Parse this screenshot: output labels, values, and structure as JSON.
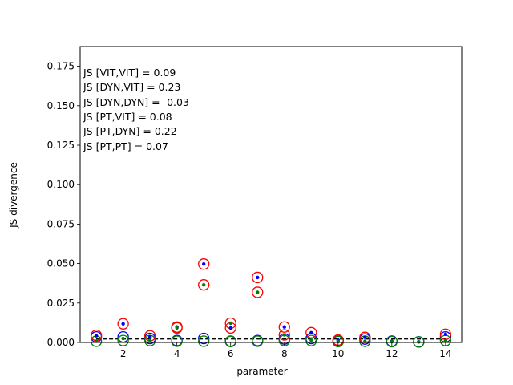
{
  "chart_data": {
    "type": "scatter",
    "xlabel": "parameter",
    "ylabel": "JS divergence",
    "xlim": [
      0.4,
      14.6
    ],
    "ylim": [
      0.0,
      0.1875
    ],
    "x_ticks": [
      2,
      4,
      6,
      8,
      10,
      12,
      14
    ],
    "y_ticks": [
      0.0,
      0.025,
      0.05,
      0.075,
      0.1,
      0.125,
      0.15,
      0.175
    ],
    "x_tick_labels": [
      "2",
      "4",
      "6",
      "8",
      "10",
      "12",
      "14"
    ],
    "y_tick_labels": [
      "0.000",
      "0.025",
      "0.050",
      "0.075",
      "0.100",
      "0.125",
      "0.150",
      "0.175"
    ],
    "grid": false,
    "reference_line": {
      "y": 0.0022,
      "style": "dashed",
      "color": "#000000"
    },
    "annotations": [
      "JS [VIT,VIT] = 0.09",
      "JS [DYN,VIT] = 0.23",
      "JS [DYN,DYN] = -0.03",
      "JS [PT,VIT] = 0.08",
      "JS [PT,DYN] = 0.22",
      "JS [PT,PT] = 0.07"
    ],
    "series": [
      {
        "marker": "ring",
        "color": "#0000ff",
        "x": [
          1,
          2,
          3,
          4,
          5,
          6,
          7,
          8,
          9,
          10,
          11,
          12,
          13,
          14
        ],
        "y": [
          0.0035,
          0.0035,
          0.0025,
          0.0012,
          0.0025,
          0.0008,
          0.0012,
          0.0022,
          0.0025,
          0.0008,
          0.0022,
          0.0008,
          0.0004,
          0.0035
        ]
      },
      {
        "marker": "ring",
        "color": "#008000",
        "x": [
          1,
          2,
          3,
          4,
          5,
          6,
          7,
          8,
          9,
          10,
          11,
          12,
          13,
          14
        ],
        "y": [
          0.0008,
          0.0012,
          0.0012,
          0.0008,
          0.0008,
          0.0006,
          0.0008,
          0.0012,
          0.0012,
          0.0006,
          0.0008,
          0.0005,
          0.0003,
          0.0012
        ]
      },
      {
        "marker": "ring",
        "color": "#ff0000",
        "x": [
          1,
          2,
          3,
          4,
          4,
          5,
          5,
          6,
          6,
          7,
          7,
          8,
          8,
          9,
          10,
          11,
          14
        ],
        "y": [
          0.0045,
          0.0118,
          0.0042,
          0.0098,
          0.0092,
          0.0497,
          0.0365,
          0.0122,
          0.0092,
          0.0412,
          0.0318,
          0.0098,
          0.0048,
          0.0062,
          0.0015,
          0.0032,
          0.0052
        ]
      },
      {
        "marker": "dot",
        "color": "#0000ff",
        "x": [
          1,
          2,
          3,
          4,
          5,
          6,
          7,
          8,
          9,
          10,
          11,
          12,
          13,
          14
        ],
        "y": [
          0.0042,
          0.0118,
          0.0035,
          0.0098,
          0.0497,
          0.0092,
          0.0412,
          0.0098,
          0.0062,
          0.0015,
          0.0032,
          0.0008,
          0.0004,
          0.0052
        ]
      },
      {
        "marker": "dot",
        "color": "#008000",
        "x": [
          1,
          2,
          3,
          4,
          5,
          6,
          7,
          8,
          9,
          10,
          11,
          12,
          13,
          14
        ],
        "y": [
          0.0008,
          0.0025,
          0.0012,
          0.0092,
          0.0365,
          0.0122,
          0.0318,
          0.0048,
          0.0015,
          0.0006,
          0.0008,
          0.0005,
          0.0003,
          0.0012
        ]
      }
    ]
  }
}
